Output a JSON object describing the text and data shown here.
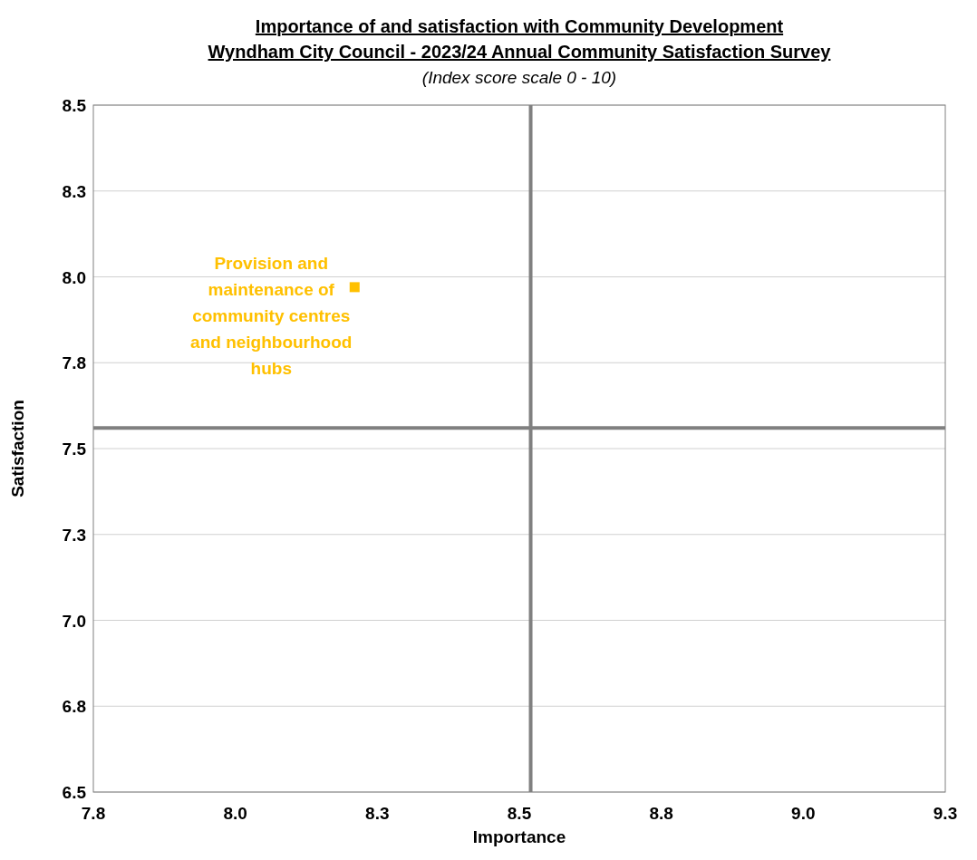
{
  "chart_data": {
    "type": "scatter",
    "title": "Importance of and satisfaction  with Community Development\nWyndham City Council - 2023/24 Annual Community Satisfaction  Survey",
    "subtitle": "(Index score scale 0 - 10)",
    "xlabel": "Importance",
    "ylabel": "Satisfaction",
    "xlim": [
      7.75,
      9.25
    ],
    "xticks": [
      {
        "value": 7.75,
        "label": "7.8"
      },
      {
        "value": 8.0,
        "label": "8.0"
      },
      {
        "value": 8.25,
        "label": "8.3"
      },
      {
        "value": 8.5,
        "label": "8.5"
      },
      {
        "value": 8.75,
        "label": "8.8"
      },
      {
        "value": 9.0,
        "label": "9.0"
      },
      {
        "value": 9.25,
        "label": "9.3"
      }
    ],
    "ylim": [
      6.5,
      8.5
    ],
    "yticks": [
      {
        "value": 6.5,
        "label": "6.5"
      },
      {
        "value": 6.75,
        "label": "6.8"
      },
      {
        "value": 7.0,
        "label": "7.0"
      },
      {
        "value": 7.25,
        "label": "7.3"
      },
      {
        "value": 7.5,
        "label": "7.5"
      },
      {
        "value": 7.75,
        "label": "7.8"
      },
      {
        "value": 8.0,
        "label": "8.0"
      },
      {
        "value": 8.25,
        "label": "8.3"
      },
      {
        "value": 8.5,
        "label": "8.5"
      }
    ],
    "grid": "y",
    "marker": "square",
    "series": [
      {
        "color": "#ffc000",
        "x": [
          8.21
        ],
        "values": [
          7.97
        ]
      }
    ],
    "ref_lines": [
      {
        "axis": "x",
        "value": 8.52,
        "color": "#808080"
      },
      {
        "axis": "y",
        "value": 7.56,
        "color": "#808080"
      }
    ],
    "annotations": [
      {
        "text": "Provision and maintenance of community centres and neighbourhood hubs",
        "x": 8.21,
        "y": 7.97
      }
    ]
  }
}
